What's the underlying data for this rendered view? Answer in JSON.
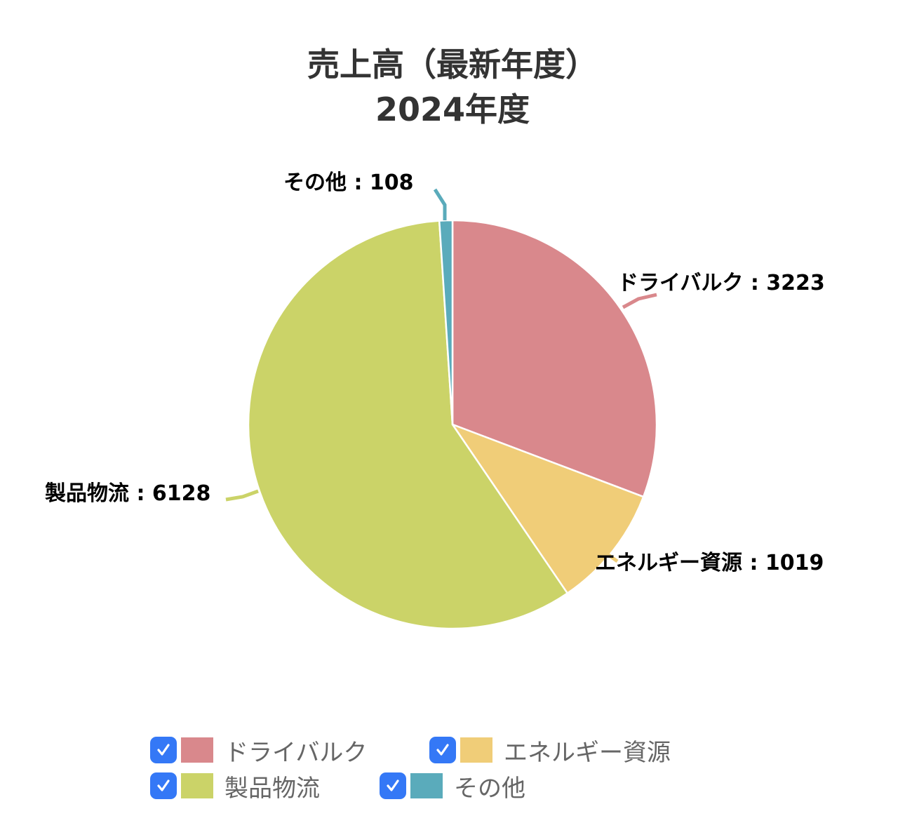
{
  "chart_data": {
    "type": "pie",
    "title": "売上高（最新年度）",
    "subtitle": "2024年度",
    "categories": [
      "ドライバルク",
      "エネルギー資源",
      "製品物流",
      "その他"
    ],
    "values": [
      3223,
      1019,
      6128,
      108
    ],
    "colors": [
      "#d9888c",
      "#f0cd78",
      "#cbd368",
      "#5aabbb"
    ],
    "data_labels": [
      "ドライバルク : 3223",
      "エネルギー資源 : 1019",
      "製品物流 : 6128",
      "その他 : 108"
    ],
    "start_angle_deg": -90,
    "direction": "clockwise",
    "legend_position": "bottom"
  },
  "title": {
    "line1": "売上高（最新年度）",
    "line2": "2024年度"
  },
  "labels": {
    "dry_bulk": "ドライバルク : 3223",
    "energy": "エネルギー資源 : 1019",
    "product": "製品物流 : 6128",
    "other": "その他 : 108"
  },
  "legend": {
    "items": [
      {
        "label": "ドライバルク",
        "color": "#d9888c",
        "checked": true
      },
      {
        "label": "エネルギー資源",
        "color": "#f0cd78",
        "checked": true
      },
      {
        "label": "製品物流",
        "color": "#cbd368",
        "checked": true
      },
      {
        "label": "その他",
        "color": "#5aabbb",
        "checked": true
      }
    ]
  }
}
